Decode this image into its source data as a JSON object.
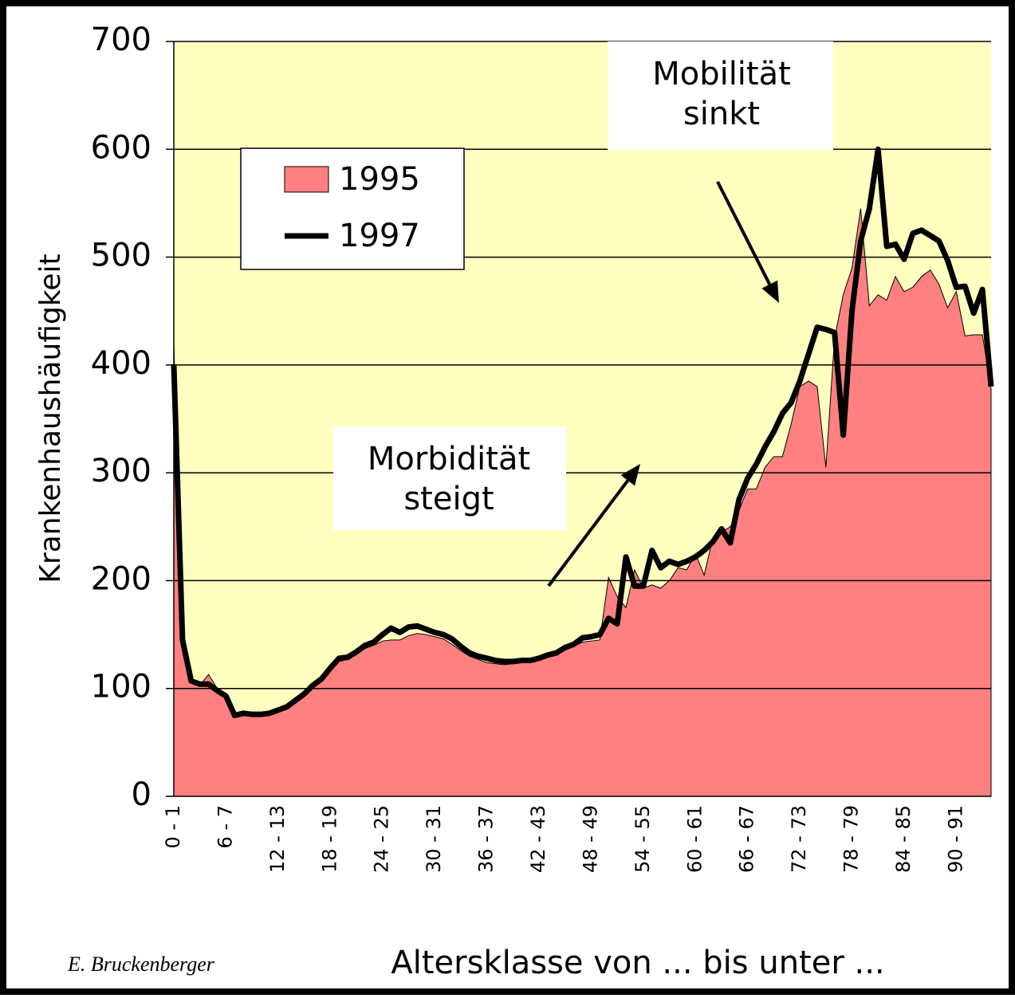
{
  "chart_data": {
    "type": "area-line",
    "y_label": "Krankenhaushäufigkeit",
    "x_label": "Altersklasse von ... bis unter ...",
    "credit": "E. Bruckenberger",
    "annotations": [
      {
        "text": [
          "Mobilität",
          "sinkt"
        ]
      },
      {
        "text": [
          "Morbidität",
          "steigt"
        ]
      }
    ],
    "categories": [
      "0 - 1",
      null,
      null,
      null,
      null,
      null,
      "6 - 7",
      null,
      null,
      null,
      null,
      null,
      "12 - 13",
      null,
      null,
      null,
      null,
      null,
      "18 - 19",
      null,
      null,
      null,
      null,
      null,
      "24 - 25",
      null,
      null,
      null,
      null,
      null,
      "30 - 31",
      null,
      null,
      null,
      null,
      null,
      "36 - 37",
      null,
      null,
      null,
      null,
      null,
      "42 - 43",
      null,
      null,
      null,
      null,
      null,
      "48 - 49",
      null,
      null,
      null,
      null,
      null,
      "54 - 55",
      null,
      null,
      null,
      null,
      null,
      "60 - 61",
      null,
      null,
      null,
      null,
      null,
      "66 - 67",
      null,
      null,
      null,
      null,
      null,
      "72 - 73",
      null,
      null,
      null,
      null,
      null,
      "78 - 79",
      null,
      null,
      null,
      null,
      null,
      "84 - 85",
      null,
      null,
      null,
      null,
      null,
      "90 - 91",
      null,
      null,
      null,
      null
    ],
    "series": [
      {
        "name": "1995",
        "kind": "area",
        "color": "#ff8080",
        "values": [
          420,
          135,
          105,
          103,
          113,
          100,
          92,
          76,
          76,
          75,
          75,
          76,
          79,
          82,
          88,
          94,
          101,
          107,
          116,
          125,
          127,
          132,
          137,
          140,
          144,
          145,
          145,
          149,
          151,
          150,
          148,
          146,
          141,
          135,
          130,
          127,
          124,
          123,
          122,
          123,
          124,
          125,
          127,
          130,
          132,
          136,
          139,
          143,
          144,
          145,
          203,
          185,
          175,
          210,
          193,
          196,
          193,
          200,
          212,
          210,
          225,
          205,
          240,
          245,
          250,
          265,
          285,
          285,
          305,
          315,
          315,
          345,
          380,
          385,
          380,
          305,
          425,
          465,
          490,
          545,
          455,
          465,
          460,
          482,
          468,
          472,
          482,
          488,
          475,
          453,
          468,
          427,
          428,
          428,
          378
        ]
      },
      {
        "name": "1997",
        "kind": "line",
        "color": "#000000",
        "values": [
          400,
          145,
          107,
          104,
          104,
          98,
          93,
          75,
          77,
          76,
          76,
          77,
          80,
          83,
          89,
          95,
          103,
          109,
          119,
          128,
          129,
          134,
          140,
          143,
          150,
          156,
          152,
          157,
          158,
          155,
          152,
          150,
          146,
          139,
          133,
          130,
          128,
          126,
          125,
          125,
          126,
          126,
          128,
          131,
          133,
          138,
          141,
          147,
          148,
          150,
          165,
          160,
          222,
          195,
          195,
          228,
          212,
          218,
          215,
          218,
          222,
          228,
          236,
          248,
          235,
          275,
          295,
          308,
          324,
          338,
          355,
          365,
          385,
          410,
          435,
          433,
          430,
          335,
          450,
          515,
          545,
          600,
          510,
          512,
          498,
          522,
          525,
          520,
          515,
          497,
          472,
          473,
          448,
          470,
          380
        ]
      }
    ],
    "ylim": [
      0,
      700
    ],
    "yticks": [
      0,
      100,
      200,
      300,
      400,
      500,
      600,
      700
    ],
    "grid": true,
    "plot_background": "#ffffc0"
  }
}
